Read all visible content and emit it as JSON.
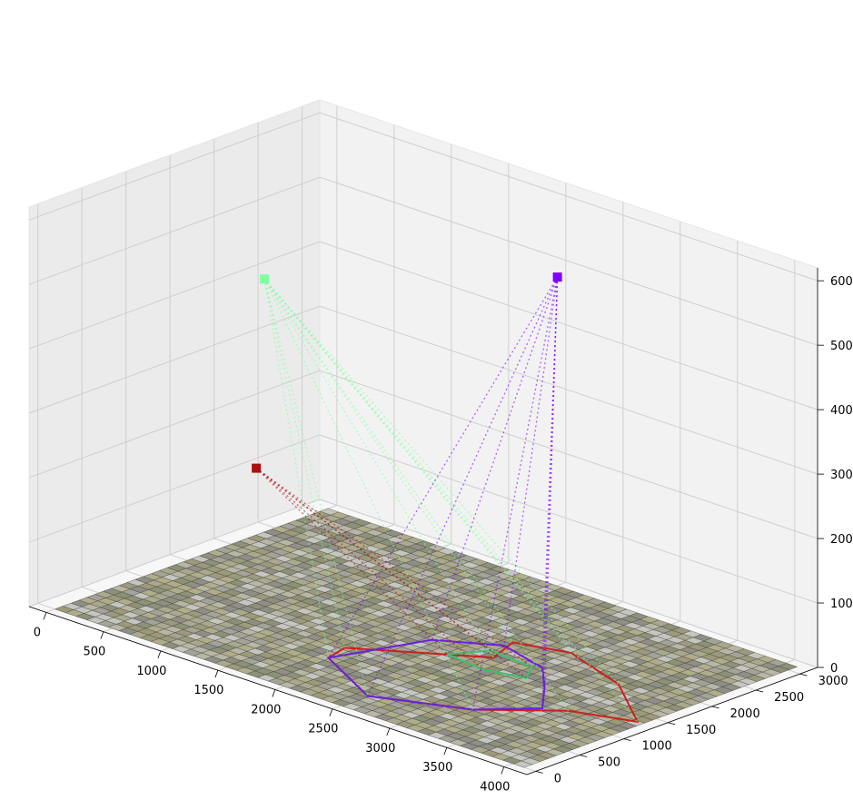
{
  "chart_data": {
    "type": "scatter",
    "projection": "3d",
    "title": "",
    "xlabel": "",
    "ylabel": "",
    "zlabel": "",
    "x_ticks": [
      "0",
      "500",
      "1000",
      "1500",
      "2000",
      "2500",
      "3000",
      "3500",
      "4000"
    ],
    "y_ticks": [
      "0",
      "500",
      "1000",
      "1500",
      "2000",
      "2500",
      "3000"
    ],
    "z_ticks": [
      "0",
      "100",
      "200",
      "300",
      "400",
      "500",
      "600"
    ],
    "xlim": [
      -150,
      4200
    ],
    "ylim": [
      -100,
      3200
    ],
    "zlim": [
      0,
      620
    ],
    "grid": true,
    "ground_surface": {
      "description": "textured image mesh at z = 0",
      "x_range": [
        0,
        4100
      ],
      "y_range": [
        0,
        3100
      ]
    },
    "cameras": [
      {
        "color": "#7fffa0",
        "x": 60,
        "y": 2300,
        "z": 400
      },
      {
        "color": "#7f00ff",
        "x": 2250,
        "y": 2780,
        "z": 510
      },
      {
        "color": "#aa1010",
        "x": 450,
        "y": 1700,
        "z": 160
      }
    ],
    "footprints": [
      {
        "color": "#cc1f1f",
        "points": [
          [
            1800,
            950
          ],
          [
            2600,
            1600
          ],
          [
            2500,
            1950
          ],
          [
            2900,
            2100
          ],
          [
            3000,
            2050
          ],
          [
            3500,
            1850
          ],
          [
            4050,
            1350
          ],
          [
            3600,
            1150
          ],
          [
            3150,
            650
          ],
          [
            2500,
            300
          ],
          [
            1850,
            700
          ]
        ]
      },
      {
        "color": "#6a22d8",
        "points": [
          [
            1850,
            700
          ],
          [
            2500,
            300
          ],
          [
            3150,
            650
          ],
          [
            3450,
            1050
          ],
          [
            3200,
            1400
          ],
          [
            2950,
            1700
          ],
          [
            2500,
            1850
          ],
          [
            2100,
            1550
          ]
        ]
      },
      {
        "color": "#3fbf6f",
        "points": [
          [
            2350,
            1400
          ],
          [
            2700,
            1350
          ],
          [
            3000,
            1450
          ],
          [
            2900,
            1650
          ],
          [
            2500,
            1700
          ]
        ]
      }
    ]
  }
}
